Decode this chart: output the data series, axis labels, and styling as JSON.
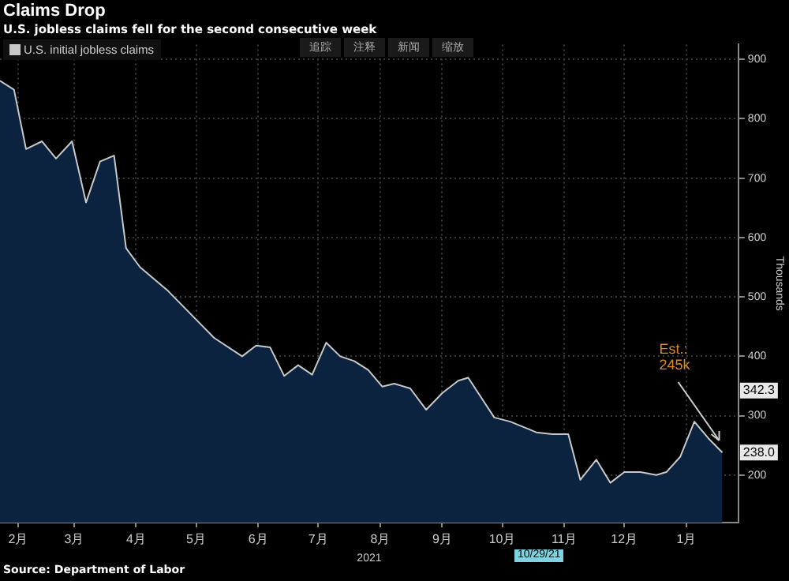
{
  "chart_data": {
    "type": "area",
    "title": "Claims Drop",
    "subtitle": "U.S. jobless claims fell for the second consecutive week",
    "ylabel": "Thousands",
    "xlabel": "2021",
    "x": [
      "2021-02-06",
      "2021-02-13",
      "2021-02-19",
      "2021-02-27",
      "2021-03-06",
      "2021-03-14",
      "2021-03-21",
      "2021-03-28",
      "2021-04-04",
      "2021-04-10",
      "2021-04-17",
      "2021-04-24",
      "2021-05-01",
      "2021-05-24",
      "2021-06-07",
      "2021-06-14",
      "2021-06-21",
      "2021-06-28",
      "2021-07-05",
      "2021-07-12",
      "2021-07-19",
      "2021-07-26",
      "2021-08-02",
      "2021-08-09",
      "2021-08-16",
      "2021-08-22",
      "2021-08-30",
      "2021-09-07",
      "2021-09-15",
      "2021-09-23",
      "2021-09-28",
      "2021-10-11",
      "2021-10-19",
      "2021-10-27",
      "2021-11-01",
      "2021-11-09",
      "2021-11-17",
      "2021-11-23",
      "2021-12-01",
      "2021-12-08",
      "2021-12-15",
      "2021-12-23",
      "2021-12-31",
      "2022-01-05",
      "2022-01-12",
      "2022-01-19",
      "2022-01-26",
      "2022-02-02"
    ],
    "series": [
      {
        "name": "U.S. initial jobless claims",
        "color": "#c8c8c8",
        "values": [
          864,
          849,
          749,
          762,
          733,
          762,
          659,
          728,
          738,
          582,
          550,
          530,
          510,
          431,
          400,
          418,
          415,
          367,
          385,
          369,
          423,
          400,
          392,
          377,
          349,
          354,
          346,
          310,
          338,
          359,
          364,
          297,
          290,
          279,
          272,
          269,
          269,
          192,
          226,
          187,
          205,
          205,
          200,
          205,
          231,
          290,
          262,
          238
        ]
      }
    ],
    "xlim": [
      "2021-02-06",
      "2022-02-10"
    ],
    "xticks": [
      {
        "value": "2021-02-15",
        "label": "2月"
      },
      {
        "value": "2021-03-15",
        "label": "3月"
      },
      {
        "value": "2021-04-15",
        "label": "4月"
      },
      {
        "value": "2021-05-15",
        "label": "5月"
      },
      {
        "value": "2021-06-15",
        "label": "6月"
      },
      {
        "value": "2021-07-15",
        "label": "7月"
      },
      {
        "value": "2021-08-15",
        "label": "8月"
      },
      {
        "value": "2021-09-15",
        "label": "9月"
      },
      {
        "value": "2021-10-15",
        "label": "10月"
      },
      {
        "value": "2021-11-15",
        "label": "11月"
      },
      {
        "value": "2021-12-15",
        "label": "12月"
      },
      {
        "value": "2022-01-15",
        "label": "1月"
      }
    ],
    "ylim": [
      120,
      925
    ],
    "yticks": [
      200,
      300,
      400,
      500,
      600,
      700,
      800,
      900
    ],
    "grid": true,
    "legend": "top left",
    "annotations": [
      {
        "text": "Est.: 245k",
        "x": "2022-02-02",
        "y": 245
      },
      {
        "text": "342.3",
        "y": 342.3
      },
      {
        "text": "238.0",
        "y": 238
      },
      "Source: Department of Labor",
      "追踪",
      "注释",
      "新闻",
      "缩放",
      "10/29/21"
    ]
  }
}
